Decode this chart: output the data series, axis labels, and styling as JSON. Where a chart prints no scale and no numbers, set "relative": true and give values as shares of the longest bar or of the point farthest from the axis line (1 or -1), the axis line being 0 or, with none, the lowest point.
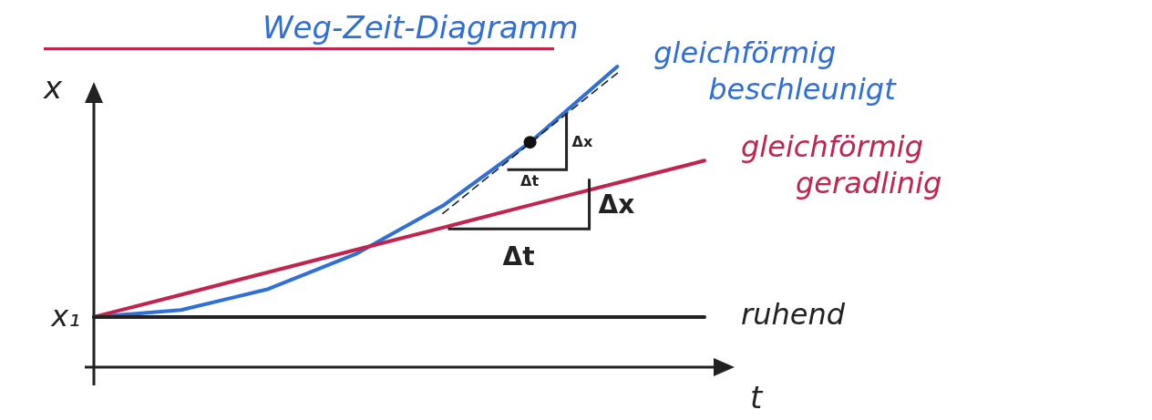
{
  "chart_data": {
    "type": "line",
    "relative": true,
    "title": "Weg-Zeit-Diagramm",
    "xlabel": "t",
    "ylabel": "x",
    "categories": [
      null,
      null,
      null,
      null,
      null,
      null,
      null,
      null
    ],
    "series": [
      {
        "name": "gleichförmig beschleunigt",
        "color": "#2f6fd6",
        "values": [
          0.167,
          0.19,
          0.26,
          0.376,
          0.537,
          0.748,
          1.0,
          null
        ]
      },
      {
        "name": "gleichförmig geradlinig",
        "color": "#c0244f",
        "values": [
          0.167,
          0.241,
          0.316,
          0.39,
          0.464,
          0.539,
          0.613,
          0.687
        ]
      },
      {
        "name": "ruhend",
        "color": "#222222",
        "values": [
          0.167,
          0.167,
          0.167,
          0.167,
          0.167,
          0.167,
          0.167,
          0.167
        ]
      },
      {
        "line_style": "dashed",
        "color": "#222222",
        "values": [
          null,
          null,
          null,
          null,
          0.511,
          0.745,
          0.978,
          null
        ]
      }
    ],
    "annotations": [
      "x₁",
      "Δx",
      "Δt",
      "Δx",
      "Δt"
    ]
  }
}
